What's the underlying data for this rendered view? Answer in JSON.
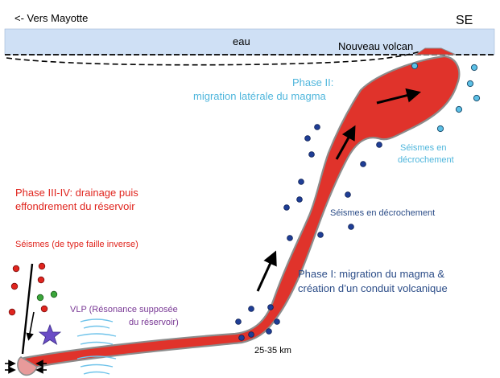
{
  "labels": {
    "direction_left": "<- Vers Mayotte",
    "direction_right": "SE",
    "water": "eau",
    "new_volcano": "Nouveau volcan",
    "phase2_line1": "Phase II:",
    "phase2_line2": "migration latérale du magma",
    "seismes_decrochement_upper_line1": "Séismes en",
    "seismes_decrochement_upper_line2": "décrochement",
    "seismes_decrochement_mid": "Séismes en décrochement",
    "phase34_line1": "Phase III-IV: drainage puis",
    "phase34_line2": "effondrement du réservoir",
    "seismes_inverse": "Séismes (de type faille inverse)",
    "phase1_line1": "Phase I: migration du magma &",
    "phase1_line2": "création d’un conduit volcanique",
    "vlp_line1": "VLP (Résonance supposée",
    "vlp_line2": "du réservoir)",
    "depth": "25-35 km"
  },
  "colors": {
    "sea": "#cfe0f5",
    "magma": "#e0332b",
    "magma_outline": "#8c8c8c",
    "phase2_text": "#4fb6dc",
    "phase1_text": "#2c4d88",
    "phase34_text": "#e0251e",
    "vlp_text": "#7a3a96",
    "deep_quake": "#1f3e96",
    "shallow_quake": "#5cc0e6",
    "reverse_quake_red": "#e0251e",
    "reverse_quake_green": "#3aa53a",
    "star": "#6a4cc6"
  }
}
